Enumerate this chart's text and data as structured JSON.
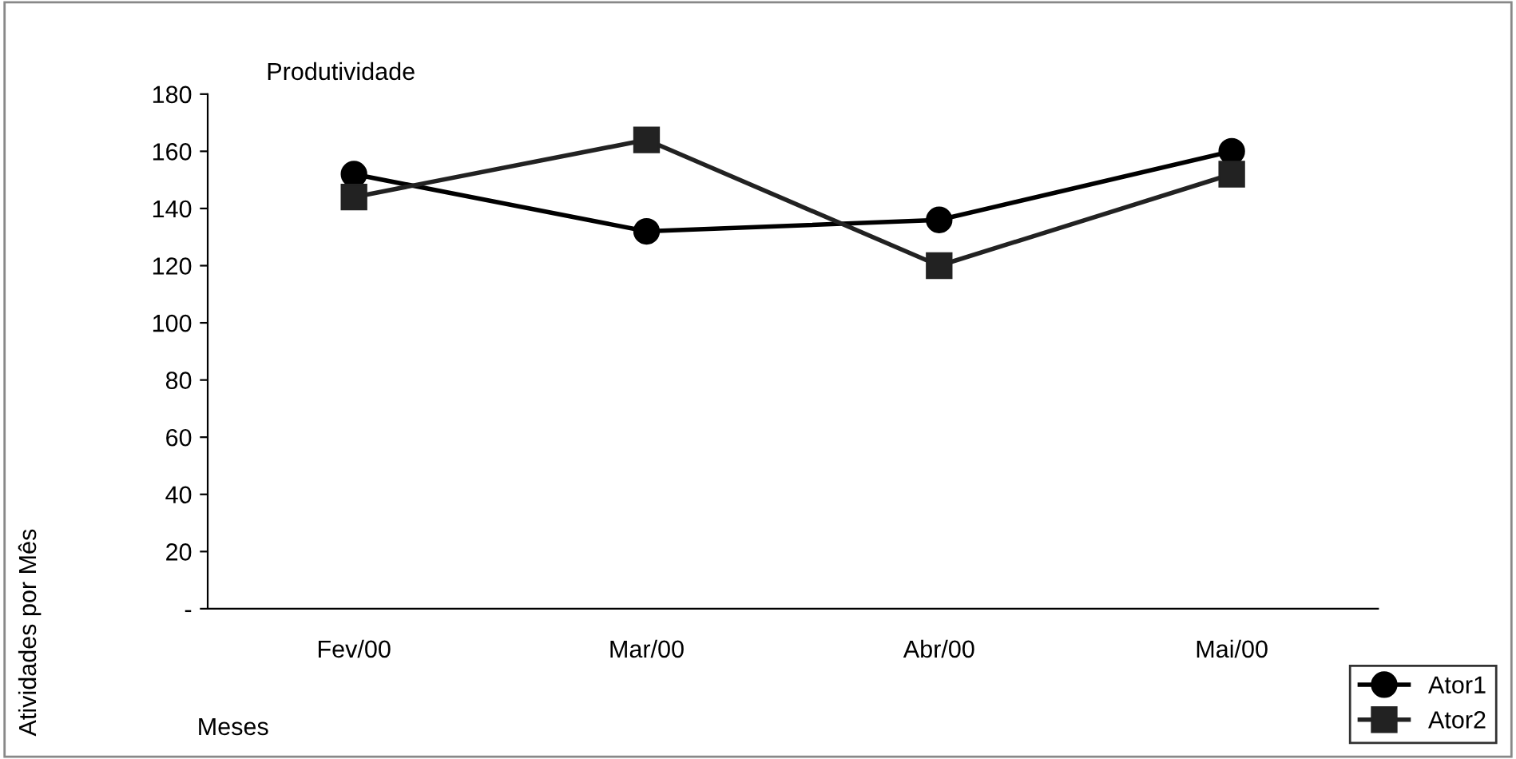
{
  "chart_data": {
    "type": "line",
    "title": "Produtividade",
    "xlabel": "Meses",
    "ylabel": "Atividades por Mês",
    "categories": [
      "Fev/00",
      "Mar/00",
      "Abr/00",
      "Mai/00"
    ],
    "series": [
      {
        "name": "Ator1",
        "color": "#000000",
        "values": [
          152,
          132,
          136,
          160
        ],
        "marker": "circle"
      },
      {
        "name": "Ator2",
        "color": "#222222",
        "values": [
          144,
          164,
          120,
          152
        ],
        "marker": "square"
      }
    ],
    "ylim": [
      0,
      180
    ],
    "yticks": [
      {
        "value": 0,
        "label": "-"
      },
      20,
      40,
      60,
      80,
      100,
      120,
      140,
      160,
      180
    ],
    "grid": false,
    "legend": "bottom right",
    "line_style": "solid"
  }
}
